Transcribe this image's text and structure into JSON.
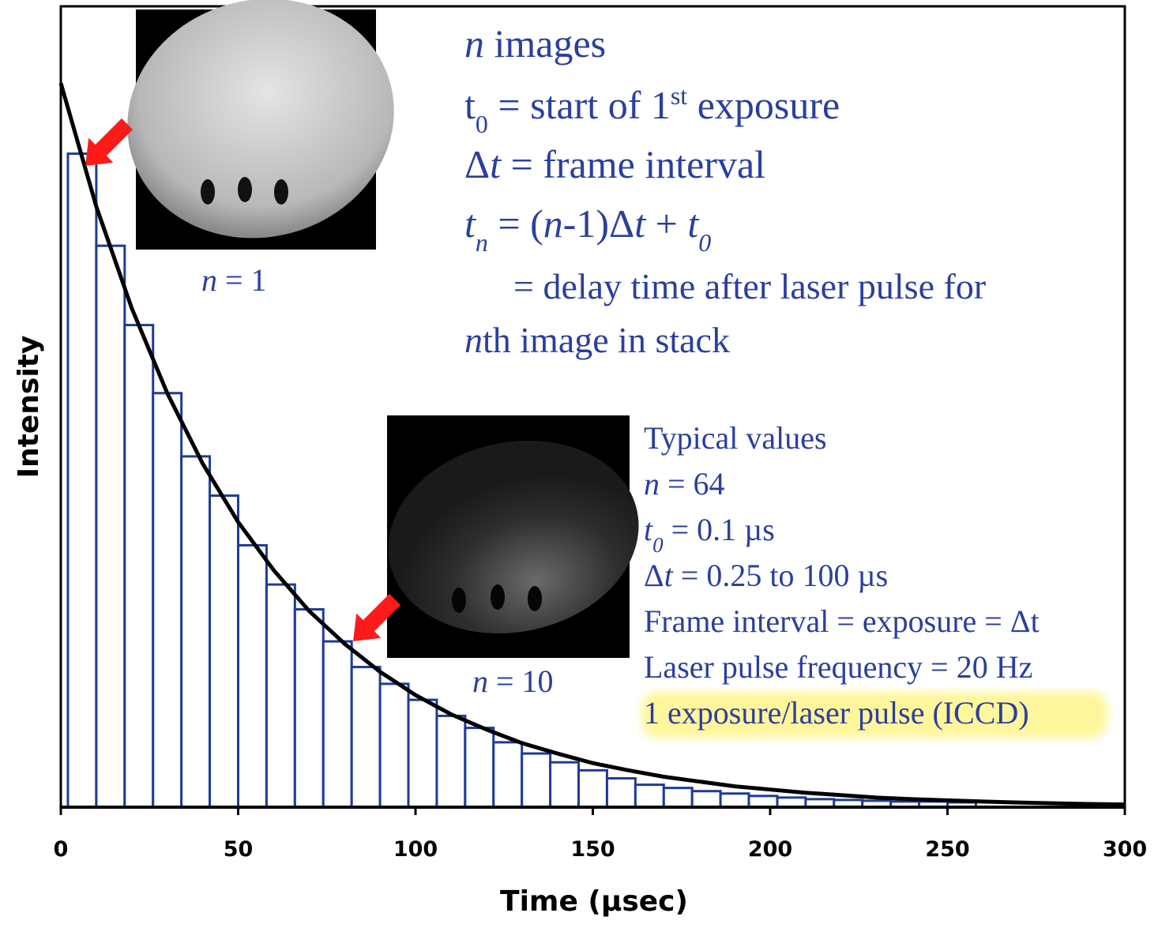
{
  "chart_data": {
    "type": "histogram",
    "xlabel": "Time (µsec)",
    "ylabel": "Intensity",
    "bins": [
      2,
      10,
      18,
      26,
      34,
      42,
      50,
      58,
      66,
      74,
      82,
      90,
      98,
      106,
      114,
      122,
      130,
      138,
      146,
      154,
      162,
      170,
      178,
      186,
      194,
      202,
      210,
      218,
      226,
      234,
      242,
      250,
      258
    ],
    "values": [
      81.6,
      70.1,
      60.2,
      51.7,
      43.8,
      38.9,
      32.7,
      27.8,
      24.7,
      20.7,
      17.5,
      15.4,
      13.4,
      11.4,
      9.9,
      8.1,
      6.7,
      5.6,
      4.6,
      3.6,
      2.8,
      2.4,
      2.0,
      1.7,
      1.4,
      1.2,
      1.0,
      0.9,
      0.8,
      0.7,
      0.7,
      0.6
    ],
    "color": "#1f3c96",
    "curve": {
      "color": "#000000",
      "x": [
        0,
        10,
        20,
        30,
        40,
        50,
        60,
        70,
        80,
        90,
        100,
        110,
        120,
        130,
        140,
        150,
        160,
        170,
        180,
        190,
        200,
        210,
        220,
        230,
        240,
        250,
        260,
        270,
        280,
        290,
        300
      ],
      "values": [
        90.4,
        75.0,
        62.3,
        51.7,
        42.9,
        35.6,
        29.6,
        24.5,
        20.4,
        16.9,
        14.0,
        11.6,
        9.7,
        8.0,
        6.7,
        5.5,
        4.6,
        3.8,
        3.2,
        2.6,
        2.2,
        1.8,
        1.5,
        1.2,
        1.0,
        0.85,
        0.7,
        0.58,
        0.48,
        0.4,
        0.33
      ]
    },
    "xlim": [
      0,
      300
    ],
    "xticks": [
      0,
      50,
      100,
      150,
      200,
      250,
      300
    ],
    "ylim": [
      0,
      100
    ],
    "grid": false,
    "annotations": {
      "definitions": [
        [
          "n",
          " images"
        ],
        [
          "t",
          "0",
          " = start of 1",
          "st",
          " exposure"
        ],
        [
          "Δ",
          "t",
          " = frame interval"
        ],
        [
          "t",
          "n",
          " = (",
          "n",
          "-1)Δ",
          "t",
          " + ",
          "t",
          "0"
        ],
        [
          "= delay time after laser pulse for"
        ],
        [
          "n",
          "th image in stack"
        ]
      ],
      "first_image": [
        "n",
        " = 1"
      ],
      "tenth_image": [
        "n",
        " = 10"
      ],
      "typical": [
        [
          "Typical values"
        ],
        [
          "n",
          " = 64"
        ],
        [
          "t",
          "0",
          " = 0.1 µs"
        ],
        [
          "Δ",
          "t",
          " = 0.25 to 100 µs"
        ],
        [
          "Frame interval = exposure = Δt"
        ],
        [
          "Laser pulse frequency = 20 Hz"
        ],
        [
          "1 exposure/laser pulse (ICCD)"
        ]
      ]
    }
  }
}
